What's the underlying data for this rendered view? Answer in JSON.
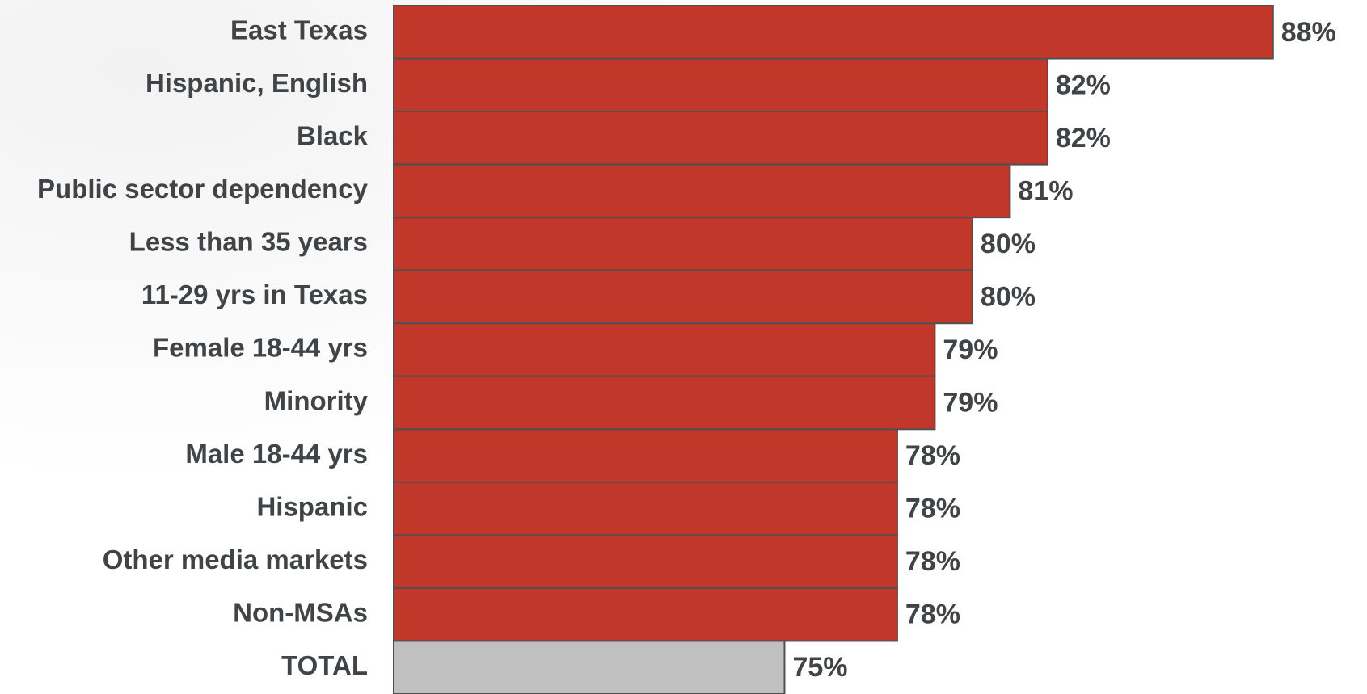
{
  "chart_data": {
    "type": "hbar",
    "categories": [
      "East Texas",
      "Hispanic, English",
      "Black",
      "Public sector dependency",
      "Less than 35 years",
      "11-29 yrs in Texas",
      "Female 18-44 yrs",
      "Minority",
      "Male 18-44 yrs",
      "Hispanic",
      "Other media markets",
      "Non-MSAs",
      "TOTAL"
    ],
    "values": [
      88,
      82,
      82,
      81,
      80,
      80,
      79,
      79,
      78,
      78,
      78,
      78,
      75
    ],
    "value_labels": [
      "88%",
      "82%",
      "82%",
      "81%",
      "80%",
      "80%",
      "79%",
      "79%",
      "78%",
      "78%",
      "78%",
      "78%",
      "75%"
    ],
    "colors": [
      "#c1372a",
      "#c1372a",
      "#c1372a",
      "#c1372a",
      "#c1372a",
      "#c1372a",
      "#c1372a",
      "#c1372a",
      "#c1372a",
      "#c1372a",
      "#c1372a",
      "#c1372a",
      "#c0c0c0"
    ],
    "xlim": [
      64.6,
      90.5
    ]
  }
}
